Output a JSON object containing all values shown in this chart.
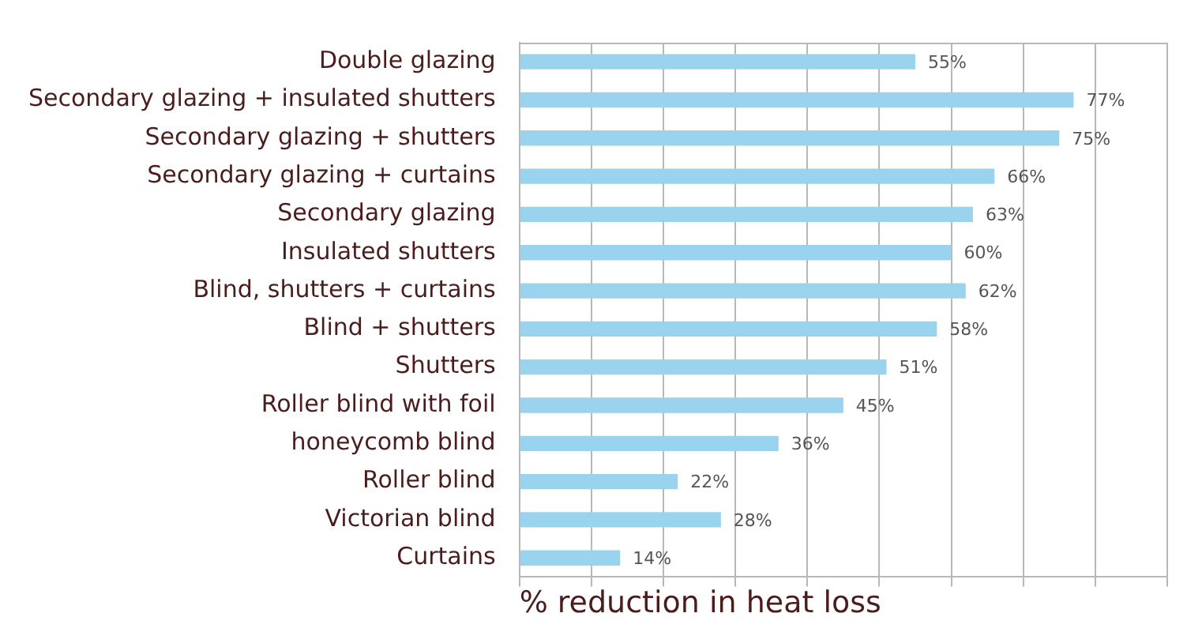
{
  "chart_data": {
    "type": "bar",
    "orientation": "horizontal",
    "xlabel": "% reduction in heat loss",
    "categories": [
      "Double glazing",
      "Secondary glazing + insulated shutters",
      "Secondary glazing + shutters",
      "Secondary glazing + curtains",
      "Secondary glazing",
      "Insulated shutters",
      "Blind, shutters + curtains",
      "Blind + shutters",
      "Shutters",
      "Roller blind with foil",
      "honeycomb blind",
      "Roller blind",
      "Victorian blind",
      "Curtains"
    ],
    "values": [
      55,
      77,
      75,
      66,
      63,
      60,
      62,
      58,
      51,
      45,
      36,
      22,
      28,
      14
    ],
    "value_labels": [
      "55%",
      "77%",
      "75%",
      "66%",
      "63%",
      "60%",
      "62%",
      "58%",
      "51%",
      "45%",
      "36%",
      "22%",
      "28%",
      "14%"
    ],
    "color": "#9ad3ee",
    "xlim": [
      0,
      90
    ],
    "xticks": [
      {
        "value": 0,
        "label": null
      },
      {
        "value": 10,
        "label": null
      },
      {
        "value": 20,
        "label": null
      },
      {
        "value": 30,
        "label": null
      },
      {
        "value": 40,
        "label": null
      },
      {
        "value": 50,
        "label": null
      },
      {
        "value": 60,
        "label": null
      },
      {
        "value": 70,
        "label": null
      },
      {
        "value": 80,
        "label": null
      },
      {
        "value": 90,
        "label": null
      }
    ],
    "grid": "x",
    "tick_labels": "y",
    "legend": false
  }
}
